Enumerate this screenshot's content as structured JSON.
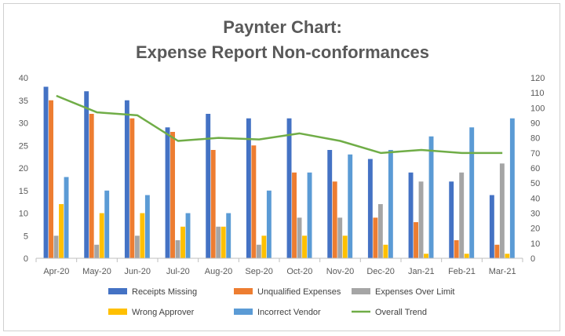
{
  "chart_data": {
    "type": "bar",
    "title": "Paynter Chart:",
    "subtitle": "Expense Report Non-conformances",
    "categories": [
      "Apr-20",
      "May-20",
      "Jun-20",
      "Jul-20",
      "Aug-20",
      "Sep-20",
      "Oct-20",
      "Nov-20",
      "Dec-20",
      "Jan-21",
      "Feb-21",
      "Mar-21"
    ],
    "series": [
      {
        "name": "Receipts Missing",
        "color": "#4472C4",
        "values": [
          38,
          37,
          35,
          29,
          32,
          31,
          31,
          24,
          22,
          19,
          17,
          14
        ]
      },
      {
        "name": "Unqualified Expenses",
        "color": "#ED7D31",
        "values": [
          35,
          32,
          31,
          28,
          24,
          25,
          19,
          17,
          9,
          8,
          4,
          3
        ]
      },
      {
        "name": "Expenses Over Limit",
        "color": "#A5A5A5",
        "values": [
          5,
          3,
          5,
          4,
          7,
          3,
          9,
          9,
          12,
          17,
          19,
          21
        ]
      },
      {
        "name": "Wrong Approver",
        "color": "#FFC000",
        "values": [
          12,
          10,
          10,
          7,
          7,
          5,
          5,
          5,
          3,
          1,
          1,
          1
        ]
      },
      {
        "name": "Incorrect Vendor",
        "color": "#5B9BD5",
        "values": [
          18,
          15,
          14,
          10,
          10,
          15,
          19,
          23,
          24,
          27,
          29,
          31
        ]
      }
    ],
    "trend": {
      "name": "Overall Trend",
      "color": "#70AD47",
      "axis": "right",
      "values": [
        108,
        97,
        95,
        78,
        80,
        79,
        83,
        78,
        70,
        72,
        70,
        70
      ]
    },
    "ylim_left": [
      0,
      40
    ],
    "yticks_left": [
      0,
      5,
      10,
      15,
      20,
      25,
      30,
      35,
      40
    ],
    "ylim_right": [
      0,
      120
    ],
    "yticks_right": [
      0,
      10,
      20,
      30,
      40,
      50,
      60,
      70,
      80,
      90,
      100,
      110,
      120
    ],
    "grid": false,
    "legend_position": "bottom"
  }
}
